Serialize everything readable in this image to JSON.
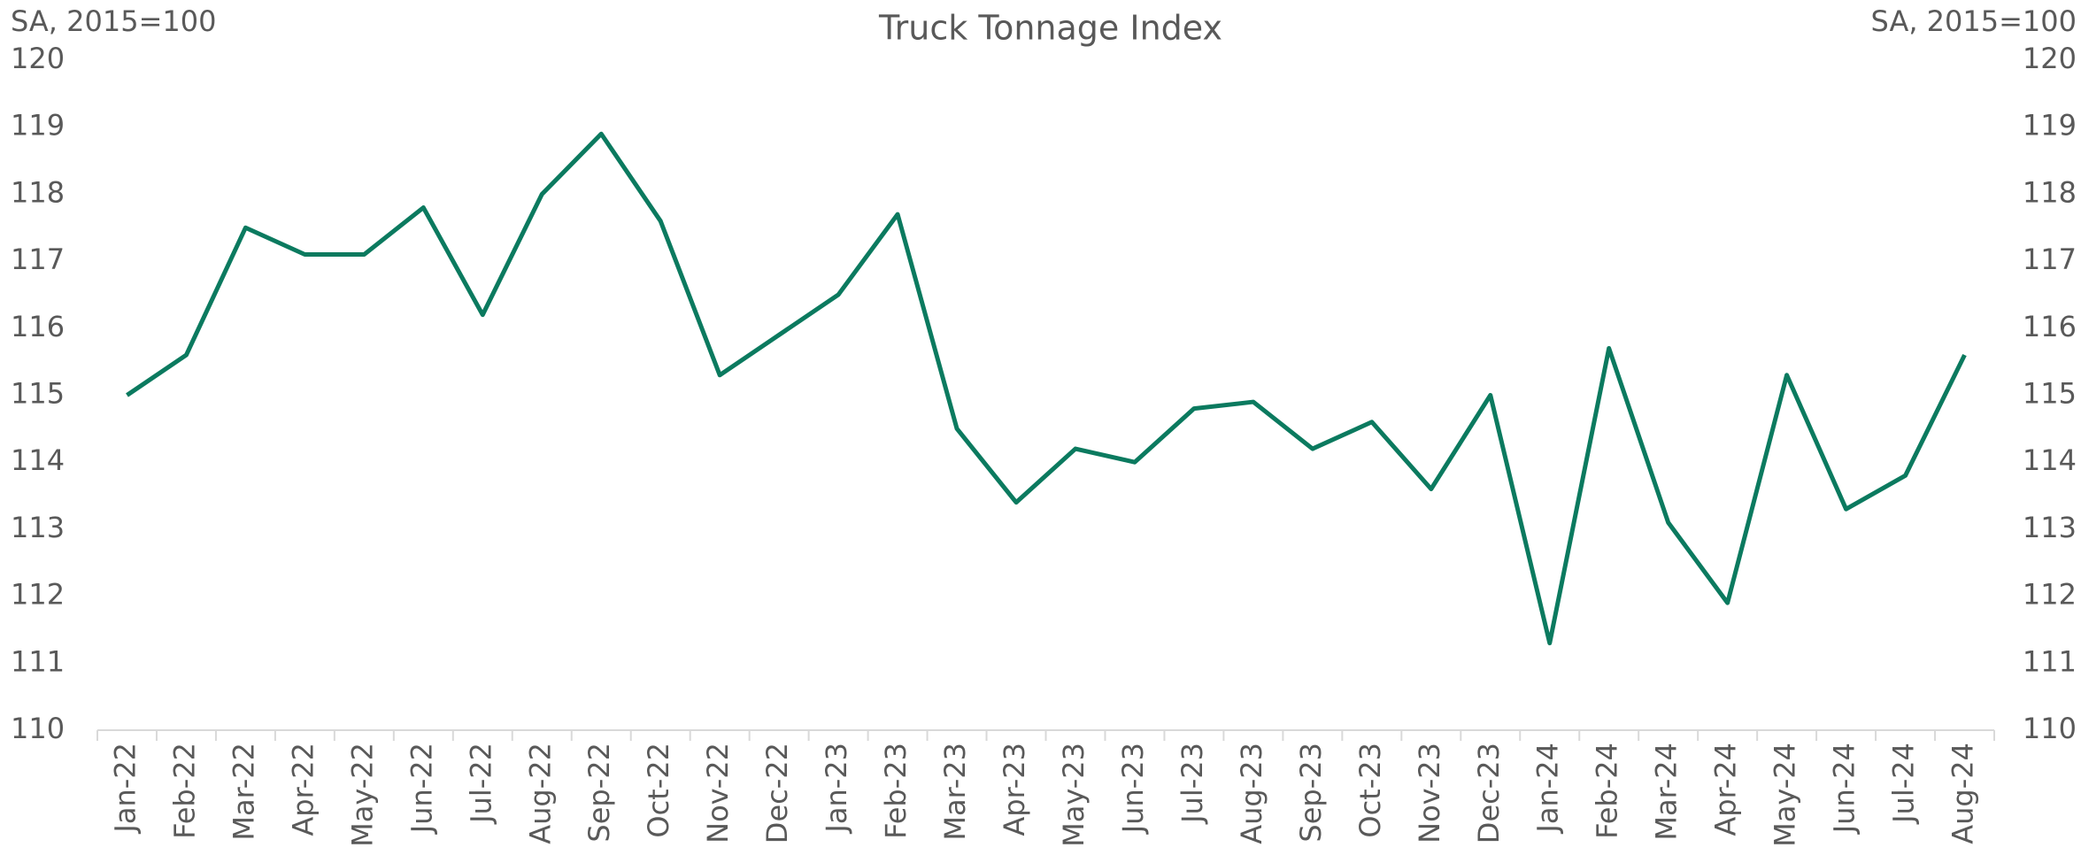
{
  "chart_data": {
    "type": "line",
    "title": "Truck Tonnage Index",
    "y_label": "SA, 2015=100",
    "y2_label": "SA, 2015=100",
    "categories": [
      "Jan-22",
      "Feb-22",
      "Mar-22",
      "Apr-22",
      "May-22",
      "Jun-22",
      "Jul-22",
      "Aug-22",
      "Sep-22",
      "Oct-22",
      "Nov-22",
      "Dec-22",
      "Jan-23",
      "Feb-23",
      "Mar-23",
      "Apr-23",
      "May-23",
      "Jun-23",
      "Jul-23",
      "Aug-23",
      "Sep-23",
      "Oct-23",
      "Nov-23",
      "Dec-23",
      "Jan-24",
      "Feb-24",
      "Mar-24",
      "Apr-24",
      "May-24",
      "Jun-24",
      "Jul-24",
      "Aug-24"
    ],
    "series": [
      {
        "name": "Truck Tonnage Index",
        "color": "#0b7a5f",
        "values": [
          115.0,
          115.6,
          117.5,
          117.1,
          117.1,
          117.8,
          116.2,
          118.0,
          118.9,
          117.6,
          115.3,
          115.9,
          116.5,
          117.7,
          114.5,
          113.4,
          114.2,
          114.0,
          114.8,
          114.9,
          114.2,
          114.6,
          113.6,
          115.0,
          111.3,
          115.7,
          113.1,
          111.9,
          115.3,
          113.3,
          113.8,
          115.6
        ]
      }
    ],
    "ylim": [
      110,
      120
    ],
    "yticks": [
      110,
      111,
      112,
      113,
      114,
      115,
      116,
      117,
      118,
      119,
      120
    ],
    "y2lim": [
      110,
      120
    ],
    "y2ticks": [
      110,
      111,
      112,
      113,
      114,
      115,
      116,
      117,
      118,
      119,
      120
    ],
    "grid": false
  }
}
